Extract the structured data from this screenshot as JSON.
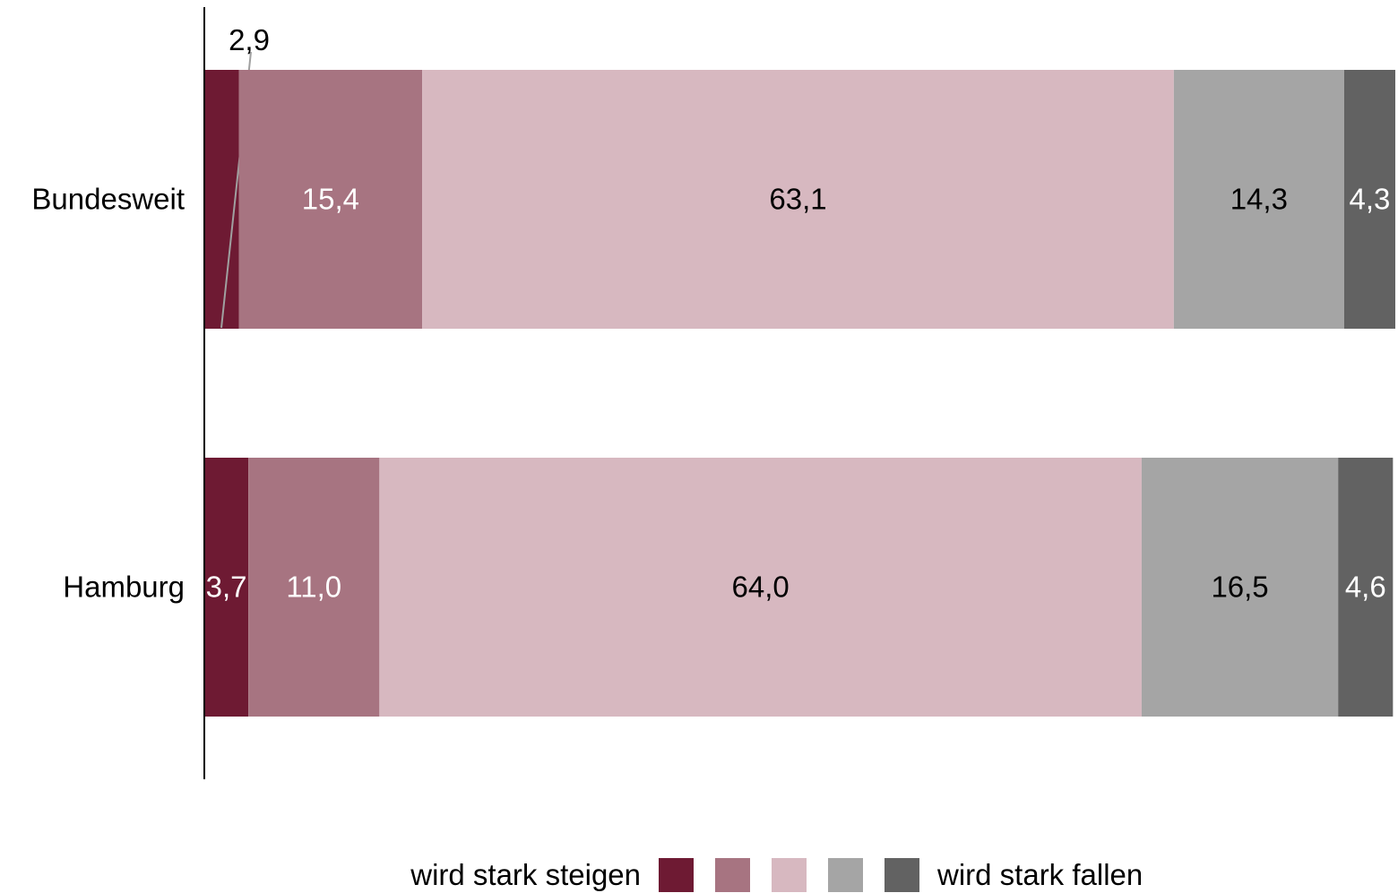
{
  "chart_data": {
    "type": "bar",
    "orientation": "horizontal",
    "stacked": true,
    "categories": [
      "Bundesweit",
      "Hamburg"
    ],
    "series": [
      {
        "values": [
          2.9,
          3.7
        ],
        "labels": [
          "2,9",
          "3,7"
        ],
        "color": "#6e1a33"
      },
      {
        "values": [
          15.4,
          11.0
        ],
        "labels": [
          "15,4",
          "11,0"
        ],
        "color": "#a77481"
      },
      {
        "values": [
          63.1,
          64.0
        ],
        "labels": [
          "63,1",
          "64,0"
        ],
        "color": "#d7b8c0"
      },
      {
        "values": [
          14.3,
          16.5
        ],
        "labels": [
          "14,3",
          "16,5"
        ],
        "color": "#a5a5a5"
      },
      {
        "values": [
          4.3,
          4.6
        ],
        "labels": [
          "4,3",
          "4,6"
        ],
        "color": "#626262"
      }
    ],
    "label_colors": [
      "#ffffff",
      "#ffffff",
      "#000000",
      "#000000",
      "#ffffff"
    ],
    "xlim": [
      0,
      100
    ],
    "grid": false,
    "legend": {
      "placement": "bottom",
      "left_label": "wird stark steigen",
      "right_label": "wird stark fallen"
    }
  }
}
